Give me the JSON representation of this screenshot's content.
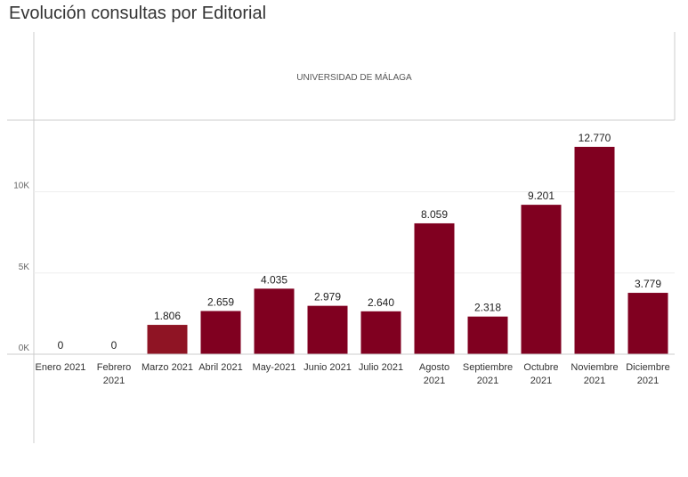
{
  "title": "Evolución consultas por Editorial",
  "chart_data": {
    "type": "bar",
    "title": "Evolución consultas por Editorial",
    "pane_label": "UNIVERSIDAD DE MÁLAGA",
    "categories": [
      [
        "Enero 2021"
      ],
      [
        "Febrero",
        "2021"
      ],
      [
        "Marzo 2021"
      ],
      [
        "Abril 2021"
      ],
      [
        "May-2021"
      ],
      [
        "Junio 2021"
      ],
      [
        "Julio 2021"
      ],
      [
        "Agosto",
        "2021"
      ],
      [
        "Septiembre",
        "2021"
      ],
      [
        "Octubre",
        "2021"
      ],
      [
        "Noviembre",
        "2021"
      ],
      [
        "Diciembre",
        "2021"
      ]
    ],
    "values": [
      0,
      0,
      1806,
      2659,
      4035,
      2979,
      2640,
      8059,
      2318,
      9201,
      12770,
      3779
    ],
    "value_labels": [
      "0",
      "0",
      "1.806",
      "2.659",
      "4.035",
      "2.979",
      "2.640",
      "8.059",
      "2.318",
      "9.201",
      "12.770",
      "3.779"
    ],
    "yticks": [
      {
        "value": 0,
        "label": "0K"
      },
      {
        "value": 5000,
        "label": "5K"
      },
      {
        "value": 10000,
        "label": "10K"
      }
    ],
    "ylim": [
      0,
      14500
    ],
    "xlabel": "",
    "ylabel": "",
    "grid": true,
    "colors": {
      "bar": "#800020",
      "bar_highlight": "#8f1424",
      "axis": "#cccccc",
      "grid": "#eeeeee"
    }
  }
}
